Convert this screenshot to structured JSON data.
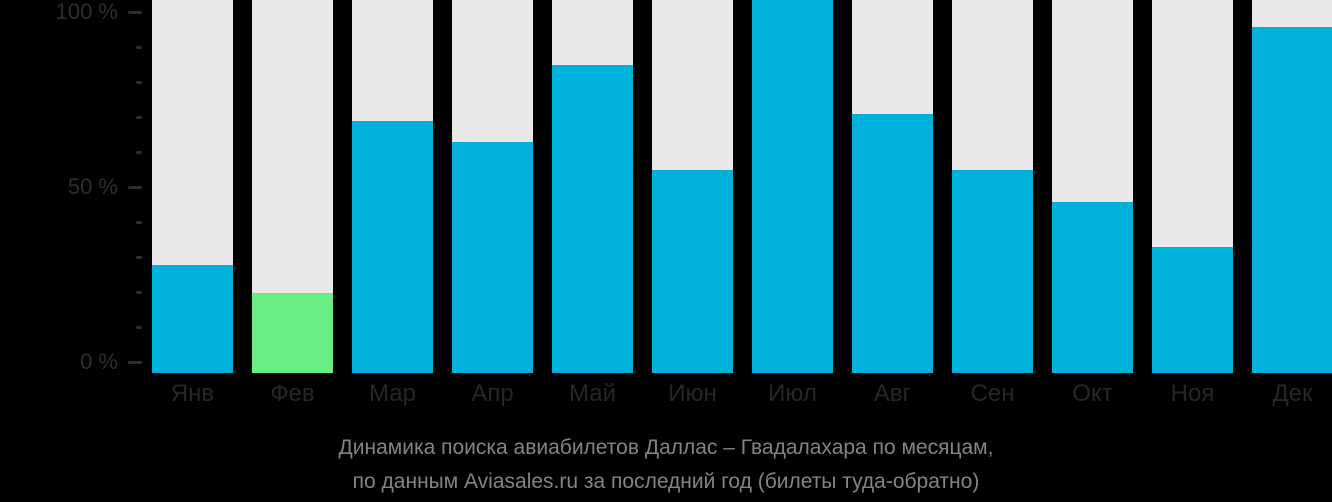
{
  "chart_data": {
    "type": "bar",
    "categories": [
      "Янв",
      "Фев",
      "Мар",
      "Апр",
      "Май",
      "Июн",
      "Июл",
      "Авг",
      "Сен",
      "Окт",
      "Ноя",
      "Дек"
    ],
    "values": [
      28,
      20,
      69,
      63,
      85,
      55,
      100,
      71,
      55,
      46,
      33,
      96
    ],
    "highlight_index": 1,
    "title": "Динамика поиска авиабилетов Даллас – Гвадалахара по месяцам,",
    "subtitle": "по данным Aviasales.ru за последний год (билеты туда-обратно)",
    "ylim": [
      0,
      100
    ],
    "grid": false,
    "legend": "none",
    "y_axis": {
      "tick_step_pct": 10,
      "labeled_ticks": [
        {
          "label": "100 %",
          "value": 100
        },
        {
          "label": "50 %",
          "value": 50
        },
        {
          "label": "0 %",
          "value": 0
        }
      ]
    },
    "colors": {
      "bar": "#00b1dc",
      "highlight": "#69ed85",
      "track": "#e8e8e8",
      "background": "#000000",
      "axis_text": "#2c2e31",
      "month_text": "#242628",
      "caption_text": "#818487"
    }
  }
}
